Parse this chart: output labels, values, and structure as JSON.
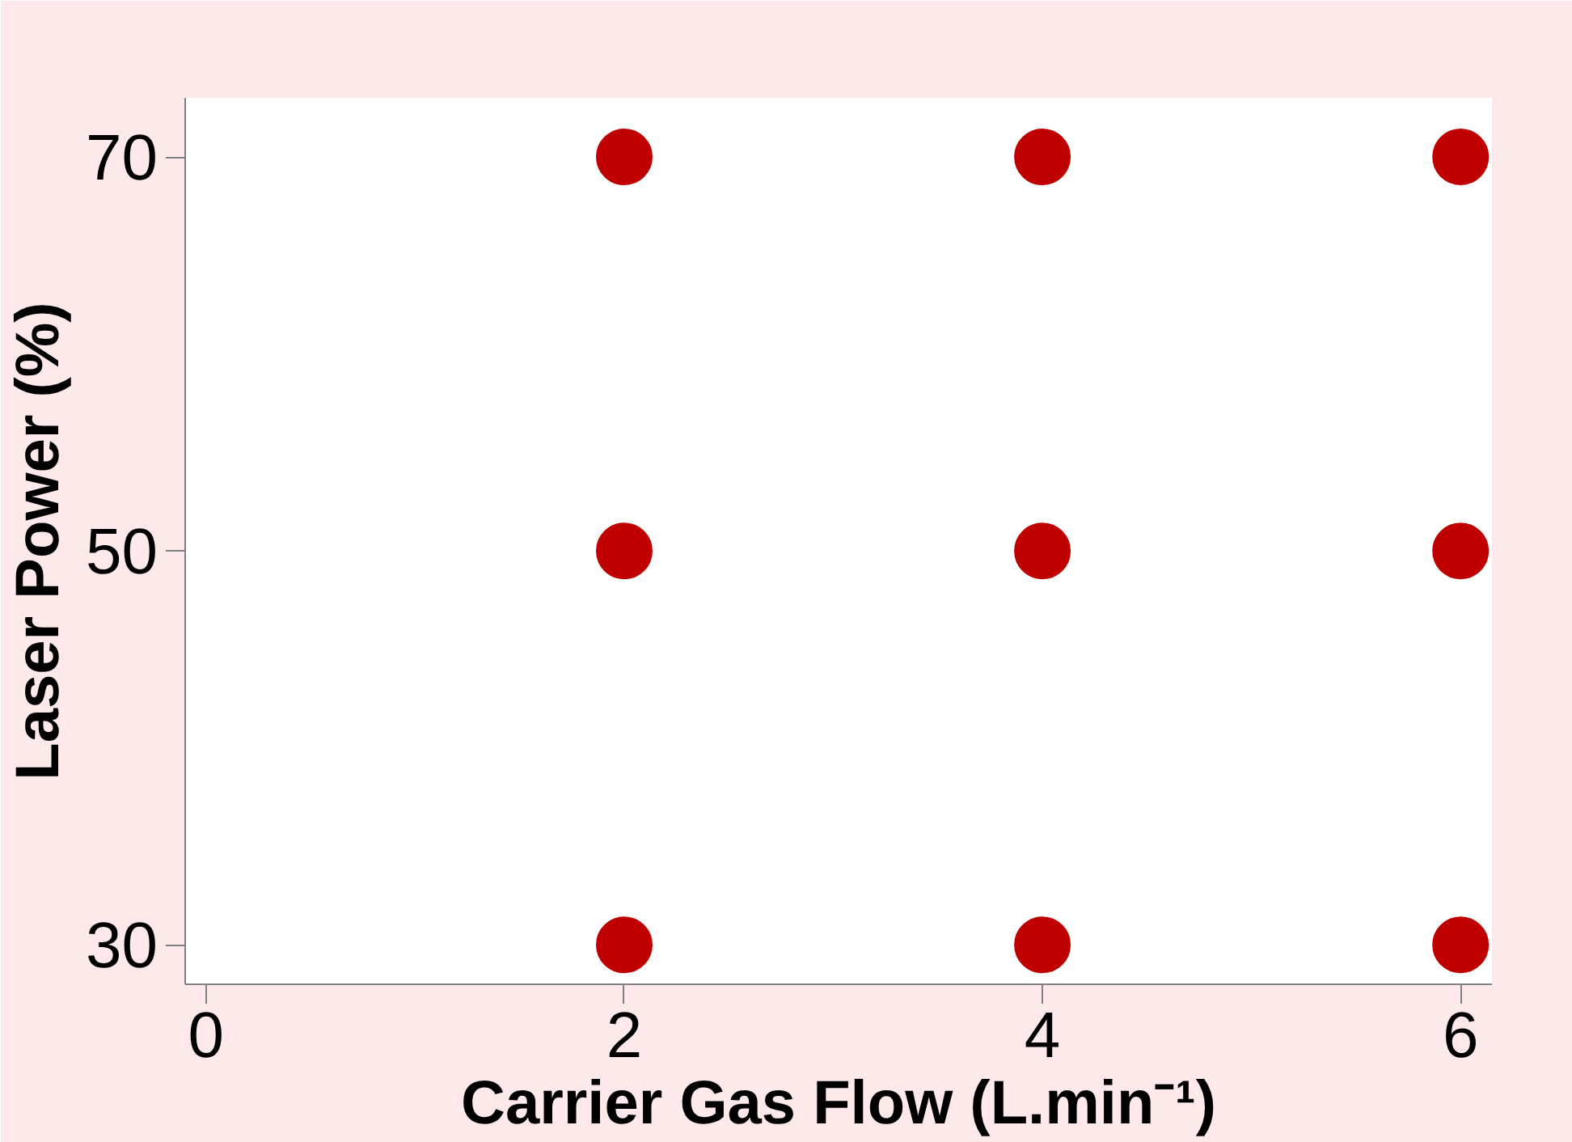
{
  "chart_data": {
    "type": "scatter",
    "xlabel": "Carrier Gas Flow (L.min⁻¹)",
    "ylabel": "Laser Power (%)",
    "x": [
      2,
      4,
      6,
      2,
      4,
      6,
      2,
      4,
      6
    ],
    "series": [
      {
        "color": "#c00000",
        "values": [
          70,
          70,
          70,
          50,
          50,
          50,
          30,
          30,
          30
        ]
      }
    ],
    "xlim": [
      -0.1,
      6.15
    ],
    "ylim": [
      28,
      73
    ],
    "xticks": [
      0,
      2,
      4,
      6
    ],
    "yticks": [
      30,
      50,
      70
    ],
    "grid": false,
    "marker": "circle"
  }
}
